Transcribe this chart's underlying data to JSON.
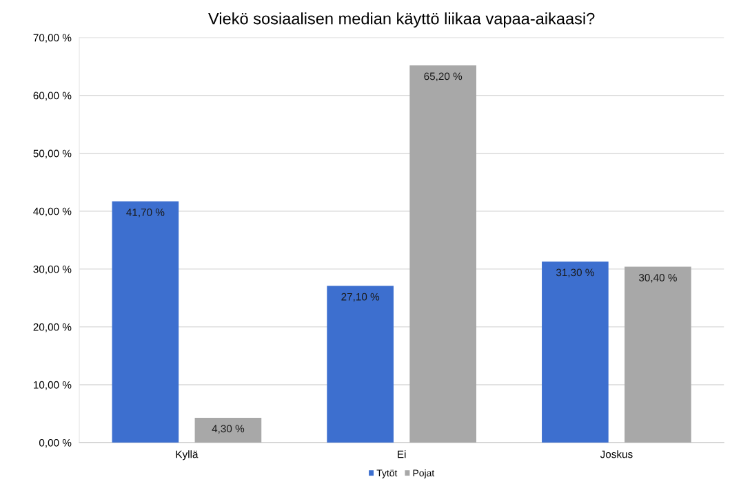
{
  "chart_data": {
    "type": "bar",
    "title": "Viekö sosiaalisen median käyttö liikaa vapaa-aikaasi?",
    "categories": [
      "Kyllä",
      "Ei",
      "Joskus"
    ],
    "series": [
      {
        "name": "Tytöt",
        "color": "#3d6fcf",
        "values": [
          41.7,
          27.1,
          31.3
        ],
        "value_labels": [
          "41,70 %",
          "27,10 %",
          "31,30 %"
        ]
      },
      {
        "name": "Pojat",
        "color": "#a8a8a8",
        "values": [
          4.3,
          65.2,
          30.4
        ],
        "value_labels": [
          "4,30 %",
          "65,20 %",
          "30,40 %"
        ]
      }
    ],
    "ylim": [
      0,
      70
    ],
    "yticks": [
      {
        "value": 0,
        "label": "0,00 %"
      },
      {
        "value": 10,
        "label": "10,00 %"
      },
      {
        "value": 20,
        "label": "20,00 %"
      },
      {
        "value": 30,
        "label": "30,00 %"
      },
      {
        "value": 40,
        "label": "40,00 %"
      },
      {
        "value": 50,
        "label": "50,00 %"
      },
      {
        "value": 60,
        "label": "60,00 %"
      },
      {
        "value": 70,
        "label": "70,00 %"
      }
    ],
    "grid": "y",
    "legend": "bottom"
  }
}
